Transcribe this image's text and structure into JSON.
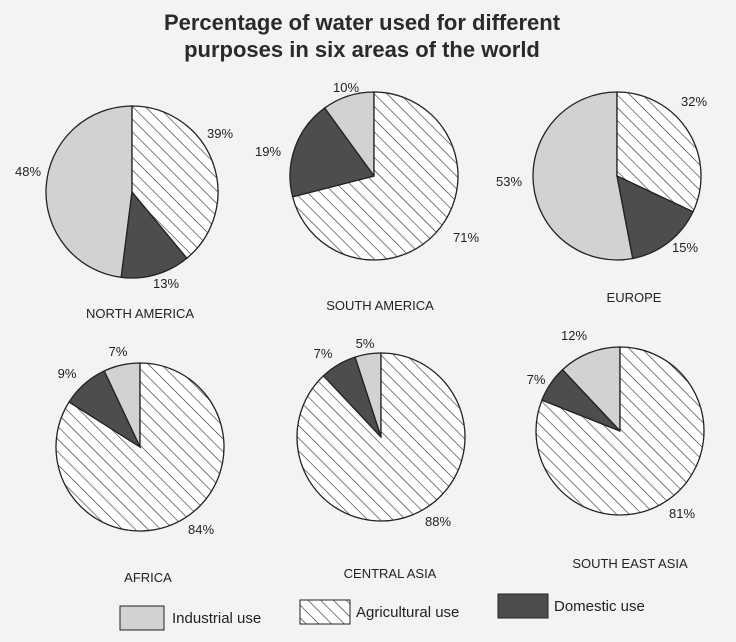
{
  "chart_data": {
    "type": "pie",
    "title_lines": [
      "Percentage of water used for different",
      "purposes in six areas of the world"
    ],
    "categories": [
      "Industrial use",
      "Agricultural use",
      "Domestic use"
    ],
    "legend": [
      "Industrial use",
      "Agricultural use",
      "Domestic use"
    ],
    "legend_placement": "bottom",
    "colors": {
      "Industrial use": "#d2d2d2",
      "Agricultural use": "#ffffff",
      "Domestic use": "#4d4d4d"
    },
    "patterns": {
      "Agricultural use": "diagonal-hatch"
    },
    "charts": [
      {
        "region": "NORTH AMERICA",
        "values": [
          48,
          39,
          13
        ],
        "labels": [
          "48%",
          "39%",
          "13%"
        ]
      },
      {
        "region": "SOUTH AMERICA",
        "values": [
          10,
          71,
          19
        ],
        "labels": [
          "10%",
          "71%",
          "19%"
        ]
      },
      {
        "region": "EUROPE",
        "values": [
          53,
          32,
          15
        ],
        "labels": [
          "53%",
          "32%",
          "15%"
        ]
      },
      {
        "region": "AFRICA",
        "values": [
          7,
          84,
          9
        ],
        "labels": [
          "7%",
          "84%",
          "9%"
        ]
      },
      {
        "region": "CENTRAL ASIA",
        "values": [
          5,
          88,
          7
        ],
        "labels": [
          "5%",
          "88%",
          "7%"
        ]
      },
      {
        "region": "SOUTH EAST ASIA",
        "values": [
          12,
          81,
          7
        ],
        "labels": [
          "12%",
          "81%",
          "7%"
        ]
      }
    ]
  }
}
